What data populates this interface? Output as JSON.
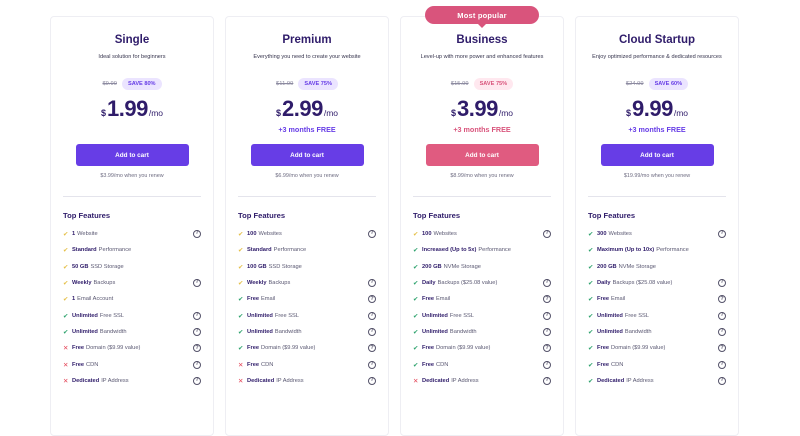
{
  "plans": [
    {
      "name": "Single",
      "description": "Ideal solution for beginners",
      "old_price": "$9.99",
      "save": "SAVE 80%",
      "currency": "$",
      "price": "1.99",
      "period": "/mo",
      "promo": "",
      "cta": "Add to cart",
      "renew": "$3.99/mo when you renew",
      "features_title": "Top Features",
      "features": [
        {
          "icon": "check",
          "color": "yellow",
          "bold": "1",
          "text": "Website",
          "help": true
        },
        {
          "icon": "check",
          "color": "yellow",
          "bold": "Standard",
          "text": "Performance",
          "help": false
        },
        {
          "icon": "check",
          "color": "yellow",
          "bold": "50 GB",
          "text": "SSD Storage",
          "help": false
        },
        {
          "icon": "check",
          "color": "yellow",
          "bold": "Weekly",
          "text": "Backups",
          "help": true
        },
        {
          "icon": "check",
          "color": "yellow",
          "bold": "1",
          "text": "Email Account",
          "help": false
        },
        {
          "icon": "check",
          "color": "green",
          "bold": "Unlimited",
          "text": "Free SSL",
          "help": true
        },
        {
          "icon": "check",
          "color": "green",
          "bold": "Unlimited",
          "text": "Bandwidth",
          "help": true
        },
        {
          "icon": "cross",
          "color": "red",
          "bold": "Free",
          "text": "Domain ($9.99 value)",
          "help": true
        },
        {
          "icon": "cross",
          "color": "red",
          "bold": "Free",
          "text": "CDN",
          "help": true
        },
        {
          "icon": "cross",
          "color": "red",
          "bold": "Dedicated",
          "text": "IP Address",
          "help": true
        }
      ]
    },
    {
      "name": "Premium",
      "description": "Everything you need to create your website",
      "old_price": "$11.99",
      "save": "SAVE 75%",
      "currency": "$",
      "price": "2.99",
      "period": "/mo",
      "promo": "+3 months FREE",
      "cta": "Add to cart",
      "renew": "$6.99/mo when you renew",
      "features_title": "Top Features",
      "features": [
        {
          "icon": "check",
          "color": "yellow",
          "bold": "100",
          "text": "Websites",
          "help": true
        },
        {
          "icon": "check",
          "color": "yellow",
          "bold": "Standard",
          "text": "Performance",
          "help": false
        },
        {
          "icon": "check",
          "color": "yellow",
          "bold": "100 GB",
          "text": "SSD Storage",
          "help": false
        },
        {
          "icon": "check",
          "color": "yellow",
          "bold": "Weekly",
          "text": "Backups",
          "help": true
        },
        {
          "icon": "check",
          "color": "green",
          "bold": "Free",
          "text": "Email",
          "help": true
        },
        {
          "icon": "check",
          "color": "green",
          "bold": "Unlimited",
          "text": "Free SSL",
          "help": true
        },
        {
          "icon": "check",
          "color": "green",
          "bold": "Unlimited",
          "text": "Bandwidth",
          "help": true
        },
        {
          "icon": "check",
          "color": "green",
          "bold": "Free",
          "text": "Domain ($9.99 value)",
          "help": true
        },
        {
          "icon": "cross",
          "color": "red",
          "bold": "Free",
          "text": "CDN",
          "help": true
        },
        {
          "icon": "cross",
          "color": "red",
          "bold": "Dedicated",
          "text": "IP Address",
          "help": true
        }
      ]
    },
    {
      "name": "Business",
      "badge": "Most popular",
      "description": "Level-up with more power and enhanced features",
      "old_price": "$15.99",
      "save": "SAVE 75%",
      "currency": "$",
      "price": "3.99",
      "period": "/mo",
      "promo": "+3 months FREE",
      "cta": "Add to cart",
      "renew": "$8.99/mo when you renew",
      "features_title": "Top Features",
      "features": [
        {
          "icon": "check",
          "color": "yellow",
          "bold": "100",
          "text": "Websites",
          "help": true
        },
        {
          "icon": "check",
          "color": "green",
          "bold": "Increased (Up to 5x)",
          "text": "Performance",
          "help": false
        },
        {
          "icon": "check",
          "color": "green",
          "bold": "200 GB",
          "text": "NVMe Storage",
          "help": false
        },
        {
          "icon": "check",
          "color": "green",
          "bold": "Daily",
          "text": "Backups ($25.08 value)",
          "help": true
        },
        {
          "icon": "check",
          "color": "green",
          "bold": "Free",
          "text": "Email",
          "help": true
        },
        {
          "icon": "check",
          "color": "green",
          "bold": "Unlimited",
          "text": "Free SSL",
          "help": true
        },
        {
          "icon": "check",
          "color": "green",
          "bold": "Unlimited",
          "text": "Bandwidth",
          "help": true
        },
        {
          "icon": "check",
          "color": "green",
          "bold": "Free",
          "text": "Domain ($9.99 value)",
          "help": true
        },
        {
          "icon": "check",
          "color": "green",
          "bold": "Free",
          "text": "CDN",
          "help": true
        },
        {
          "icon": "cross",
          "color": "red",
          "bold": "Dedicated",
          "text": "IP Address",
          "help": true
        }
      ]
    },
    {
      "name": "Cloud Startup",
      "description": "Enjoy optimized performance & dedicated resources",
      "old_price": "$24.99",
      "save": "SAVE 60%",
      "currency": "$",
      "price": "9.99",
      "period": "/mo",
      "promo": "+3 months FREE",
      "cta": "Add to cart",
      "renew": "$19.99/mo when you renew",
      "features_title": "Top Features",
      "features": [
        {
          "icon": "check",
          "color": "green",
          "bold": "300",
          "text": "Websites",
          "help": true
        },
        {
          "icon": "check",
          "color": "green",
          "bold": "Maximum (Up to 10x)",
          "text": "Performance",
          "help": false
        },
        {
          "icon": "check",
          "color": "green",
          "bold": "200 GB",
          "text": "NVMe Storage",
          "help": false
        },
        {
          "icon": "check",
          "color": "green",
          "bold": "Daily",
          "text": "Backups ($25.08 value)",
          "help": true
        },
        {
          "icon": "check",
          "color": "green",
          "bold": "Free",
          "text": "Email",
          "help": true
        },
        {
          "icon": "check",
          "color": "green",
          "bold": "Unlimited",
          "text": "Free SSL",
          "help": true
        },
        {
          "icon": "check",
          "color": "green",
          "bold": "Unlimited",
          "text": "Bandwidth",
          "help": true
        },
        {
          "icon": "check",
          "color": "green",
          "bold": "Free",
          "text": "Domain ($9.99 value)",
          "help": true
        },
        {
          "icon": "check",
          "color": "green",
          "bold": "Free",
          "text": "CDN",
          "help": true
        },
        {
          "icon": "check",
          "color": "green",
          "bold": "Dedicated",
          "text": "IP Address",
          "help": true
        }
      ]
    }
  ],
  "icons": {
    "check": "✔",
    "cross": "✕",
    "help": "?"
  },
  "colors": {
    "primary": "#673de6",
    "popular": "#d9547c",
    "check_yellow": "#e5c04a",
    "check_green": "#2fa36e",
    "cross_red": "#e5475a",
    "text_dark": "#2f1c6a"
  }
}
